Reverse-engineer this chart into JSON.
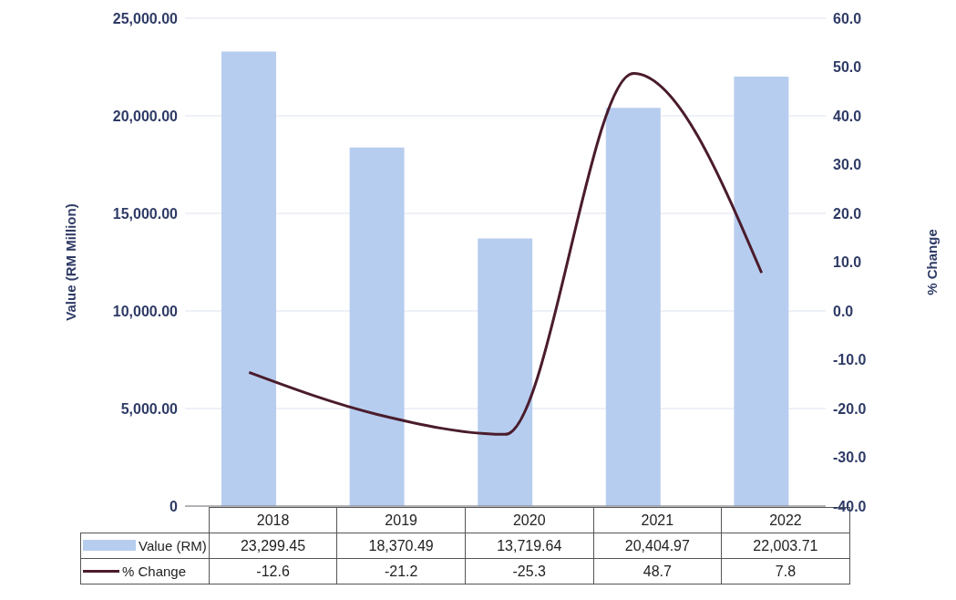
{
  "chart_data": {
    "type": "bar",
    "categories": [
      "2018",
      "2019",
      "2020",
      "2021",
      "2022"
    ],
    "ylabel": "Value (RM Million)",
    "y2label": "% Change",
    "series": [
      {
        "name": "Value (RM)",
        "color": "#b7cdef",
        "values": [
          23299.45,
          18370.49,
          13719.64,
          20404.97,
          22003.71
        ],
        "value_labels": [
          "23,299.45",
          "18,370.49",
          "13,719.64",
          "20,404.97",
          "22,003.71"
        ]
      },
      {
        "name": "% Change",
        "type": "line",
        "axis": "y2",
        "color": "#4a1c2c",
        "values": [
          -12.6,
          -21.2,
          -25.3,
          48.7,
          7.8
        ],
        "value_labels": [
          "-12.6",
          "-21.2",
          "-25.3",
          "48.7",
          "7.8"
        ]
      }
    ],
    "ylim": [
      0,
      25000
    ],
    "yticks": [
      0,
      {
        "value": 5000,
        "label": "5,000.00"
      },
      {
        "value": 10000,
        "label": "10,000.00"
      },
      {
        "value": 15000,
        "label": "15,000.00"
      },
      {
        "value": 20000,
        "label": "20,000.00"
      },
      {
        "value": 25000,
        "label": "25,000.00"
      }
    ],
    "y2lim": [
      -40,
      60
    ],
    "y2ticks": [
      {
        "value": -40,
        "label": "-40.0"
      },
      {
        "value": -30,
        "label": "-30.0"
      },
      {
        "value": -20,
        "label": "-20.0"
      },
      {
        "value": -10,
        "label": "-10.0"
      },
      {
        "value": 0,
        "label": "0.0"
      },
      {
        "value": 10,
        "label": "10.0"
      },
      {
        "value": 20,
        "label": "20.0"
      },
      {
        "value": 30,
        "label": "30.0"
      },
      {
        "value": 40,
        "label": "40.0"
      },
      {
        "value": 50,
        "label": "50.0"
      },
      {
        "value": 60,
        "label": "60.0"
      }
    ],
    "grid": "y",
    "legend": "bottom"
  }
}
